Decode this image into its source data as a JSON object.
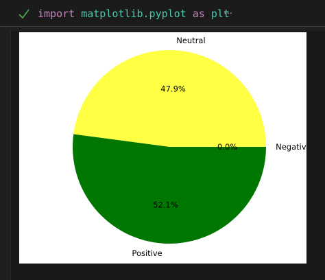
{
  "cell": {
    "code_tokens": [
      "import",
      "matplotlib.pyplot",
      "as",
      "plt"
    ],
    "ellipsis": "···",
    "status_icon": "check-icon"
  },
  "chart_data": {
    "type": "pie",
    "labels": [
      "Negative",
      "Neutral",
      "Positive"
    ],
    "values": [
      0.0,
      47.9,
      52.1
    ],
    "autopct": [
      "0.0%",
      "47.9%",
      "52.1%"
    ],
    "colors": [
      "#ff0000",
      "#ffff44",
      "#007700"
    ],
    "startangle": 0,
    "direction": "counterclockwise"
  }
}
